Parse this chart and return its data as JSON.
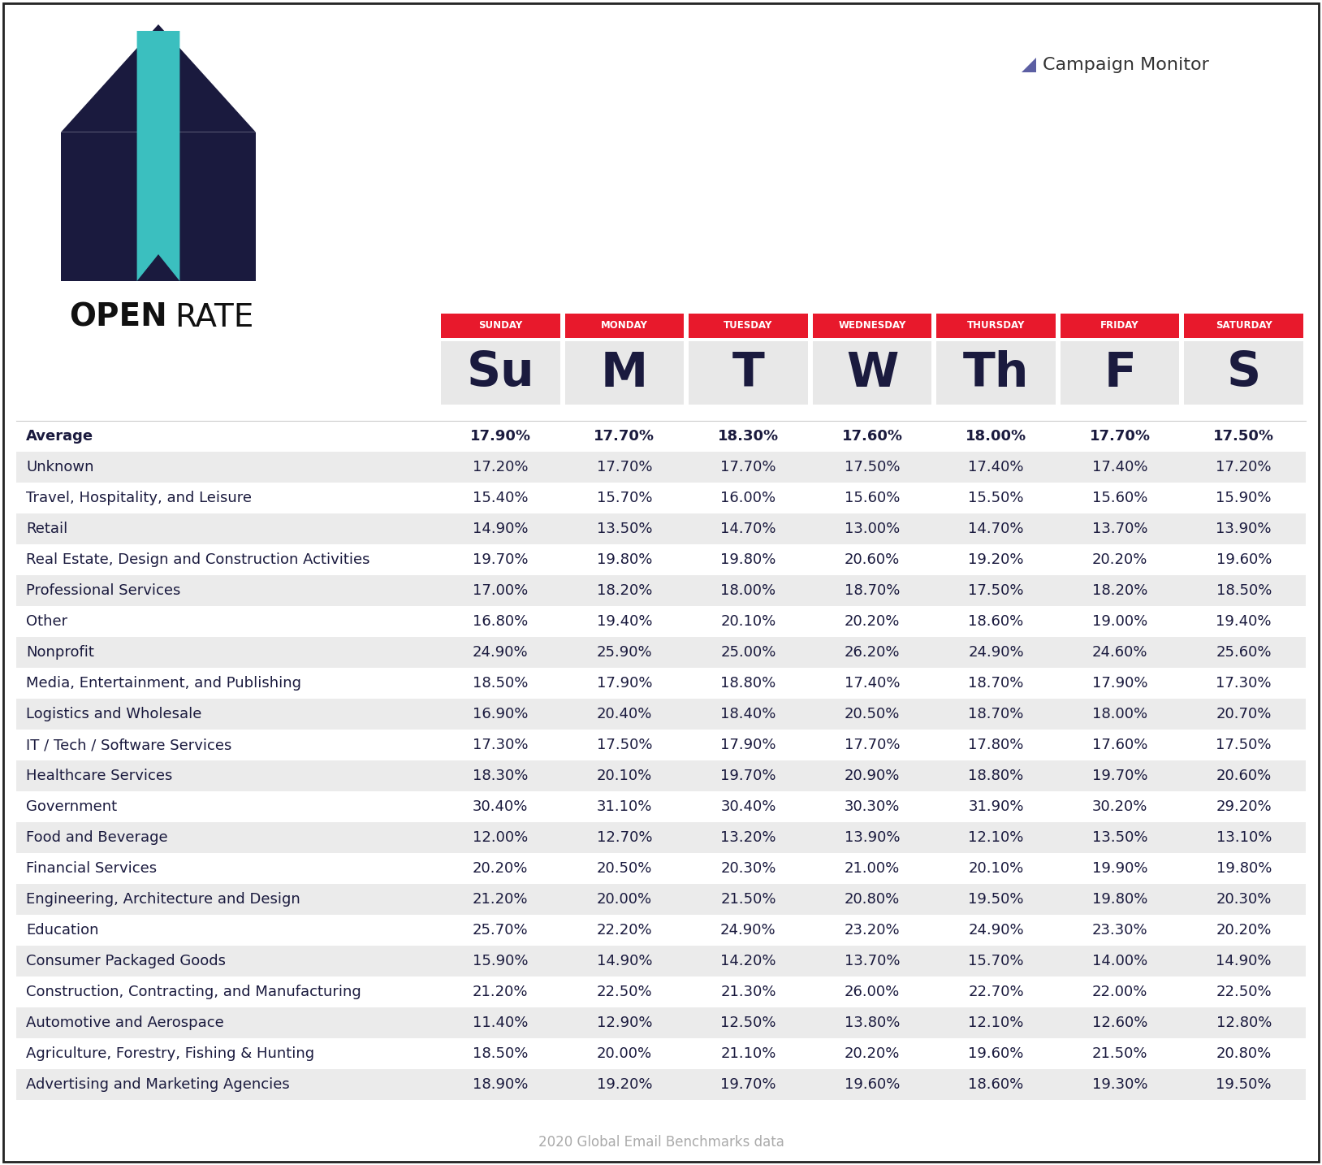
{
  "industries": [
    "Advertising and Marketing Agencies",
    "Agriculture, Forestry, Fishing & Hunting",
    "Automotive and Aerospace",
    "Construction, Contracting, and Manufacturing",
    "Consumer Packaged Goods",
    "Education",
    "Engineering, Architecture and Design",
    "Financial Services",
    "Food and Beverage",
    "Government",
    "Healthcare Services",
    "IT / Tech / Software Services",
    "Logistics and Wholesale",
    "Media, Entertainment, and Publishing",
    "Nonprofit",
    "Other",
    "Professional Services",
    "Real Estate, Design and Construction Activities",
    "Retail",
    "Travel, Hospitality, and Leisure",
    "Unknown",
    "Average"
  ],
  "days": [
    "SUNDAY",
    "MONDAY",
    "TUESDAY",
    "WEDNESDAY",
    "THURSDAY",
    "FRIDAY",
    "SATURDAY"
  ],
  "day_abbr": [
    "Su",
    "M",
    "T",
    "W",
    "Th",
    "F",
    "S"
  ],
  "data": [
    [
      18.9,
      19.2,
      19.7,
      19.6,
      18.6,
      19.3,
      19.5
    ],
    [
      18.5,
      20.0,
      21.1,
      20.2,
      19.6,
      21.5,
      20.8
    ],
    [
      11.4,
      12.9,
      12.5,
      13.8,
      12.1,
      12.6,
      12.8
    ],
    [
      21.2,
      22.5,
      21.3,
      26.0,
      22.7,
      22.0,
      22.5
    ],
    [
      15.9,
      14.9,
      14.2,
      13.7,
      15.7,
      14.0,
      14.9
    ],
    [
      25.7,
      22.2,
      24.9,
      23.2,
      24.9,
      23.3,
      20.2
    ],
    [
      21.2,
      20.0,
      21.5,
      20.8,
      19.5,
      19.8,
      20.3
    ],
    [
      20.2,
      20.5,
      20.3,
      21.0,
      20.1,
      19.9,
      19.8
    ],
    [
      12.0,
      12.7,
      13.2,
      13.9,
      12.1,
      13.5,
      13.1
    ],
    [
      30.4,
      31.1,
      30.4,
      30.3,
      31.9,
      30.2,
      29.2
    ],
    [
      18.3,
      20.1,
      19.7,
      20.9,
      18.8,
      19.7,
      20.6
    ],
    [
      17.3,
      17.5,
      17.9,
      17.7,
      17.8,
      17.6,
      17.5
    ],
    [
      16.9,
      20.4,
      18.4,
      20.5,
      18.7,
      18.0,
      20.7
    ],
    [
      18.5,
      17.9,
      18.8,
      17.4,
      18.7,
      17.9,
      17.3
    ],
    [
      24.9,
      25.9,
      25.0,
      26.2,
      24.9,
      24.6,
      25.6
    ],
    [
      16.8,
      19.4,
      20.1,
      20.2,
      18.6,
      19.0,
      19.4
    ],
    [
      17.0,
      18.2,
      18.0,
      18.7,
      17.5,
      18.2,
      18.5
    ],
    [
      19.7,
      19.8,
      19.8,
      20.6,
      19.2,
      20.2,
      19.6
    ],
    [
      14.9,
      13.5,
      14.7,
      13.0,
      14.7,
      13.7,
      13.9
    ],
    [
      15.4,
      15.7,
      16.0,
      15.6,
      15.5,
      15.6,
      15.9
    ],
    [
      17.2,
      17.7,
      17.7,
      17.5,
      17.4,
      17.4,
      17.2
    ],
    [
      17.9,
      17.7,
      18.3,
      17.6,
      18.0,
      17.7,
      17.5
    ]
  ],
  "bg_color": "#ffffff",
  "row_even_color": "#ebebeb",
  "row_odd_color": "#ffffff",
  "header_bg": "#e8192c",
  "header_text_color": "#ffffff",
  "day_box_bg": "#e8e8e8",
  "day_text_color": "#1a1a3e",
  "industry_text_color": "#1a1a3e",
  "value_text_color": "#1a1a3e",
  "title_bold": "OPEN",
  "title_regular": "RATE",
  "footer_text": "2020 Global Email Benchmarks data",
  "footer_color": "#aaaaaa",
  "border_color": "#222222",
  "logo_color": "#5c5fa3",
  "teal_color": "#3bbfbf",
  "navy_color": "#1a1a3e"
}
